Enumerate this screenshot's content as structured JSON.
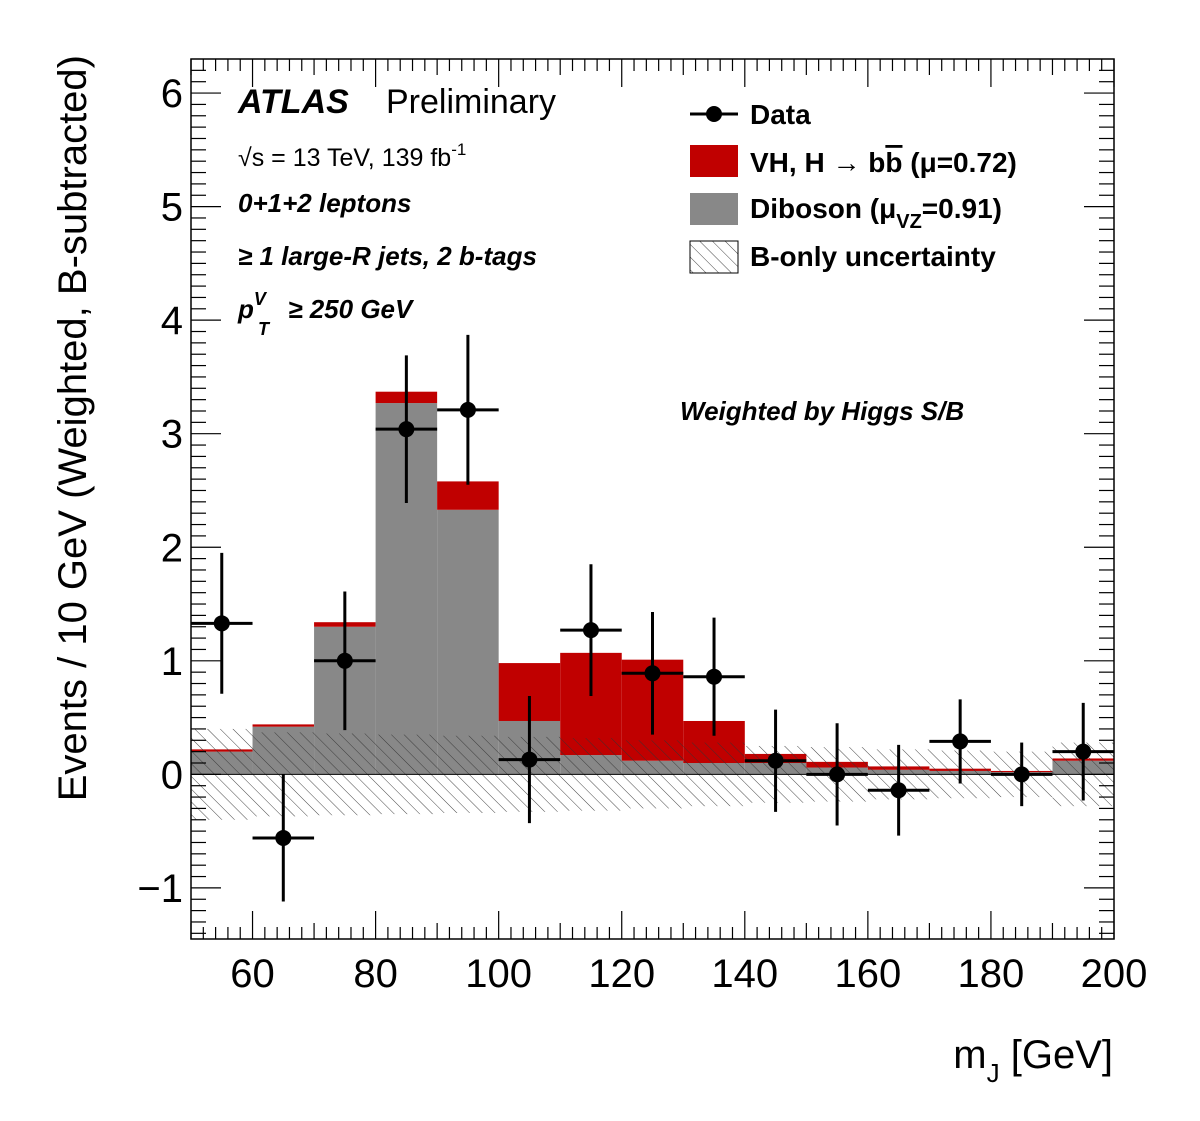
{
  "chart_data": {
    "type": "bar",
    "subtype": "stacked-histogram",
    "xlabel_main": "m",
    "xlabel_sub": "J",
    "xlabel_unit": " [GeV]",
    "ylabel": "Events / 10 GeV (Weighted, B-subtracted)",
    "xlim": [
      50,
      200
    ],
    "ylim": [
      -1.45,
      6.3
    ],
    "x_ticks": [
      60,
      80,
      100,
      120,
      140,
      160,
      180,
      200
    ],
    "y_ticks": [
      -1,
      0,
      1,
      2,
      3,
      4,
      5,
      6
    ],
    "y_tick_labels": [
      "−1",
      "0",
      "1",
      "2",
      "3",
      "4",
      "5",
      "6"
    ],
    "bin_edges": [
      50,
      60,
      70,
      80,
      90,
      100,
      110,
      120,
      130,
      140,
      150,
      160,
      170,
      180,
      190,
      200
    ],
    "series": [
      {
        "name": "Diboson",
        "color": "#888888",
        "values": [
          0.2,
          0.42,
          1.3,
          3.27,
          2.33,
          0.47,
          0.17,
          0.12,
          0.1,
          0.1,
          0.06,
          0.04,
          0.03,
          0.02,
          0.12
        ]
      },
      {
        "name": "VH, H → bb̅",
        "color": "#c00000",
        "values": [
          0.02,
          0.02,
          0.04,
          0.1,
          0.25,
          0.51,
          0.9,
          0.89,
          0.37,
          0.08,
          0.05,
          0.03,
          0.02,
          0.01,
          0.02
        ]
      }
    ],
    "uncertainty_band": {
      "name": "B-only uncertainty",
      "up": [
        0.4,
        0.37,
        0.36,
        0.35,
        0.34,
        0.33,
        0.32,
        0.3,
        0.28,
        0.25,
        0.24,
        0.22,
        0.21,
        0.2,
        0.28
      ],
      "down": [
        -0.4,
        -0.37,
        -0.36,
        -0.35,
        -0.34,
        -0.33,
        -0.32,
        -0.3,
        -0.28,
        -0.25,
        -0.24,
        -0.22,
        -0.21,
        -0.2,
        -0.28
      ]
    },
    "data_points": {
      "name": "Data",
      "x": [
        55,
        65,
        75,
        85,
        95,
        105,
        115,
        125,
        135,
        145,
        155,
        165,
        175,
        185,
        195
      ],
      "y": [
        1.33,
        -0.56,
        1.0,
        3.04,
        3.21,
        0.13,
        1.27,
        0.89,
        0.86,
        0.12,
        0.0,
        -0.14,
        0.29,
        0.0,
        0.2
      ],
      "err_up": [
        0.62,
        0.56,
        0.61,
        0.65,
        0.66,
        0.56,
        0.58,
        0.54,
        0.52,
        0.45,
        0.45,
        0.4,
        0.37,
        0.28,
        0.43
      ],
      "err_down": [
        0.62,
        0.56,
        0.61,
        0.65,
        0.66,
        0.56,
        0.58,
        0.54,
        0.52,
        0.45,
        0.45,
        0.4,
        0.37,
        0.28,
        0.43
      ]
    },
    "legend_position": "top-right",
    "legend": {
      "data": "Data",
      "signal_main": "VH, H ",
      "signal_arrow": "→",
      "signal_b": " b",
      "signal_bbar": "b",
      "signal_mu": " (μ=0.72)",
      "diboson_main": "Diboson (μ",
      "diboson_sub": "VZ",
      "diboson_val": "=0.91)",
      "uncertainty": "B-only uncertainty"
    },
    "annotations": {
      "atlas": "ATLAS",
      "preliminary": "Preliminary",
      "energy_sqrt": "√",
      "energy_s": "s",
      "energy_text": " = 13 TeV, 139 fb",
      "energy_sup": "-1",
      "leptons": "0+1+2 leptons",
      "jets": "≥ 1 large-R jets, 2 b-tags",
      "ptv_p": "p",
      "ptv_sup": "V",
      "ptv_sub": "T",
      "ptv_rest": " ≥ 250 GeV",
      "weighted": "Weighted by Higgs S/B"
    }
  }
}
